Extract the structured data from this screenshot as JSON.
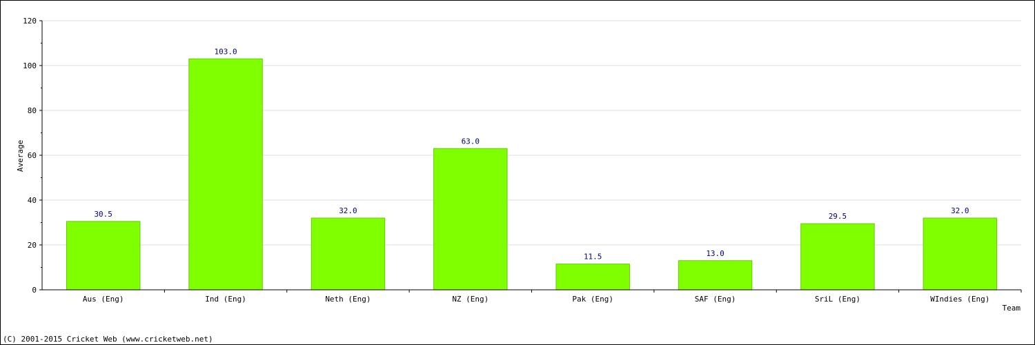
{
  "footer": {
    "copyright": "(C) 2001-2015 Cricket Web (www.cricketweb.net)"
  },
  "chart_data": {
    "type": "bar",
    "title": "",
    "xlabel": "Team",
    "ylabel": "Average",
    "ylim": [
      0,
      120
    ],
    "yticks": [
      0,
      20,
      40,
      60,
      80,
      100,
      120
    ],
    "grid": true,
    "categories": [
      "Aus (Eng)",
      "Ind (Eng)",
      "Neth (Eng)",
      "NZ (Eng)",
      "Pak (Eng)",
      "SAF (Eng)",
      "SriL (Eng)",
      "WIndies (Eng)"
    ],
    "values": [
      30.5,
      103.0,
      32.0,
      63.0,
      11.5,
      13.0,
      29.5,
      32.0
    ],
    "value_labels": [
      "30.5",
      "103.0",
      "32.0",
      "63.0",
      "11.5",
      "13.0",
      "29.5",
      "32.0"
    ],
    "colors": {
      "bar": "#80ff00",
      "bar_edge": "#66cc00",
      "value_label": "#000080",
      "grid": "#dddddd"
    }
  }
}
